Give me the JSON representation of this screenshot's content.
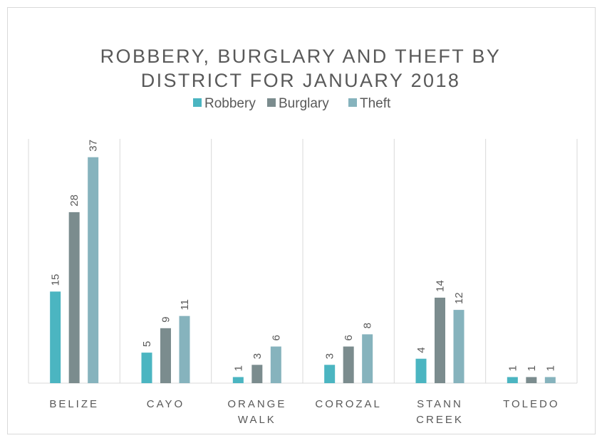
{
  "chart_data": {
    "type": "bar",
    "title": "ROBBERY, BURGLARY AND THEFT BY DISTRICT FOR JANUARY 2018",
    "categories": [
      "BELIZE",
      "CAYO",
      "ORANGE WALK",
      "COROZAL",
      "STANN CREEK",
      "TOLEDO"
    ],
    "series": [
      {
        "name": "Robbery",
        "color": "#4bb5c1",
        "values": [
          15,
          5,
          1,
          3,
          4,
          1
        ]
      },
      {
        "name": "Burglary",
        "color": "#7b8c8e",
        "values": [
          28,
          9,
          3,
          6,
          14,
          1
        ]
      },
      {
        "name": "Theft",
        "color": "#86b3bd",
        "values": [
          37,
          11,
          6,
          8,
          12,
          1
        ]
      }
    ],
    "ylim": [
      0,
      40
    ],
    "legend": "top"
  }
}
